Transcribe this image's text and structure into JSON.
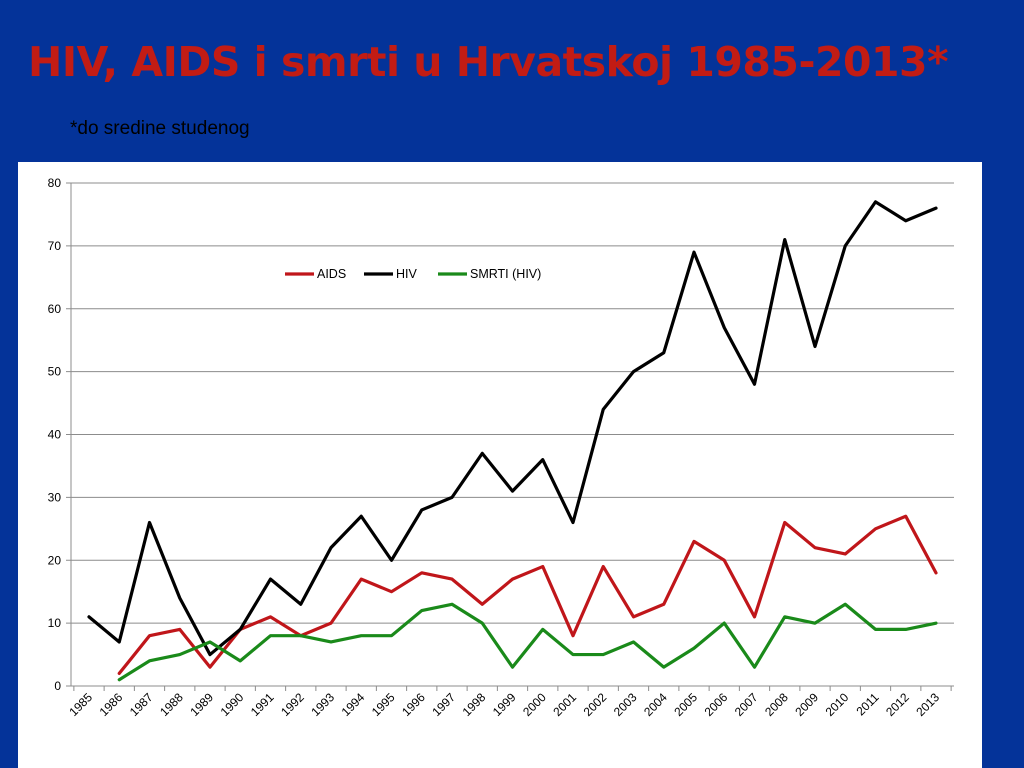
{
  "slide": {
    "title": "HIV, AIDS i smrti u Hrvatskoj 1985-2013*",
    "note": "*do sredine studenog"
  },
  "chart_data": {
    "type": "line",
    "categories": [
      "1985",
      "1986",
      "1987",
      "1988",
      "1989",
      "1990",
      "1991",
      "1992",
      "1993",
      "1994",
      "1995",
      "1996",
      "1997",
      "1998",
      "1999",
      "2000",
      "2001",
      "2002",
      "2003",
      "2004",
      "2005",
      "2006",
      "2007",
      "2008",
      "2009",
      "2010",
      "2011",
      "2012",
      "2013"
    ],
    "series": [
      {
        "name": "AIDS",
        "color": "#c0161a",
        "values": [
          null,
          2,
          8,
          9,
          3,
          9,
          11,
          8,
          10,
          17,
          15,
          18,
          17,
          13,
          17,
          19,
          8,
          19,
          11,
          13,
          23,
          20,
          11,
          26,
          22,
          21,
          25,
          27,
          18
        ]
      },
      {
        "name": "HIV",
        "color": "#000000",
        "values": [
          11,
          7,
          26,
          14,
          5,
          9,
          17,
          13,
          22,
          27,
          20,
          28,
          30,
          37,
          31,
          36,
          26,
          44,
          50,
          53,
          69,
          57,
          48,
          71,
          54,
          70,
          77,
          74,
          76
        ]
      },
      {
        "name": "SMRTI (HIV)",
        "color": "#1a8a1a",
        "values": [
          null,
          1,
          4,
          5,
          7,
          4,
          8,
          8,
          7,
          8,
          8,
          12,
          13,
          10,
          3,
          9,
          5,
          5,
          7,
          3,
          6,
          10,
          3,
          11,
          10,
          13,
          9,
          9,
          10
        ]
      }
    ],
    "ylim": [
      0,
      80
    ],
    "yticks": [
      0,
      10,
      20,
      30,
      40,
      50,
      60,
      70,
      80
    ],
    "grid": true,
    "legend_position": "top-center",
    "title": "",
    "xlabel": "",
    "ylabel": ""
  }
}
